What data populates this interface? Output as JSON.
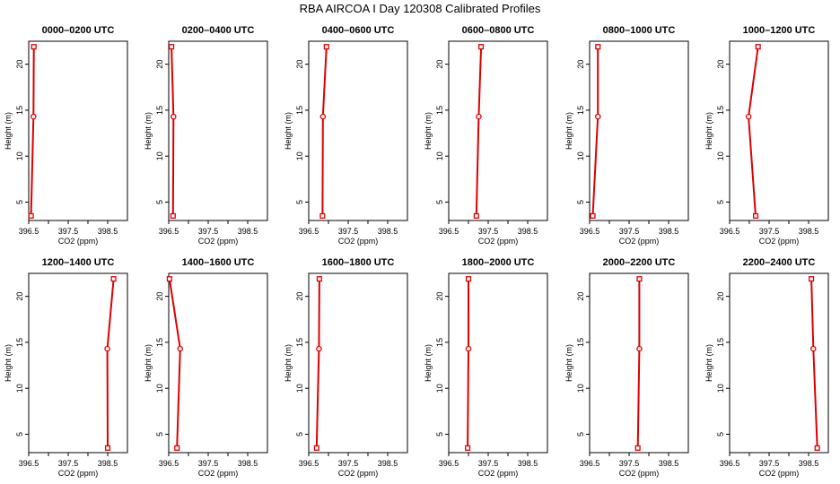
{
  "figure": {
    "title": "RBA AIRCOA I  Day 120308  Calibrated Profiles"
  },
  "chart_data": {
    "type": "line",
    "xlabel": "CO2 (ppm)",
    "ylabel": "Height (m)",
    "xlim": [
      396.5,
      399.0
    ],
    "ylim": [
      3,
      22.5
    ],
    "xticks": [
      "396.5",
      "397.5",
      "398.5"
    ],
    "xticks_values": [
      396.5,
      397.0,
      397.5,
      398.0,
      398.5
    ],
    "yticks": [
      "5",
      "10",
      "15",
      "20"
    ],
    "yticks_values": [
      5,
      10,
      15,
      20
    ],
    "heights": [
      3.5,
      14.3,
      21.9
    ],
    "line_color": "#dd0000",
    "panels": [
      {
        "title": "0000–0200 UTC",
        "values": [
          396.56,
          396.62,
          396.63
        ]
      },
      {
        "title": "0200–0400 UTC",
        "values": [
          396.61,
          396.62,
          396.57
        ]
      },
      {
        "title": "0400–0600 UTC",
        "values": [
          396.85,
          396.86,
          396.95
        ]
      },
      {
        "title": "0600–0800 UTC",
        "values": [
          397.2,
          397.26,
          397.32
        ]
      },
      {
        "title": "0800–1000 UTC",
        "values": [
          396.58,
          396.71,
          396.71
        ]
      },
      {
        "title": "1000–1200 UTC",
        "values": [
          397.16,
          396.98,
          397.22
        ]
      },
      {
        "title": "1200–1400 UTC",
        "values": [
          398.5,
          398.49,
          398.65
        ]
      },
      {
        "title": "1400–1600 UTC",
        "values": [
          396.71,
          396.79,
          396.52
        ]
      },
      {
        "title": "1600–1800 UTC",
        "values": [
          396.7,
          396.76,
          396.77
        ]
      },
      {
        "title": "1800–2000 UTC",
        "values": [
          396.98,
          397.0,
          397.0
        ]
      },
      {
        "title": "2000–2200 UTC",
        "values": [
          397.72,
          397.76,
          397.76
        ]
      },
      {
        "title": "2200–2400 UTC",
        "values": [
          398.72,
          398.62,
          398.57
        ]
      }
    ]
  }
}
